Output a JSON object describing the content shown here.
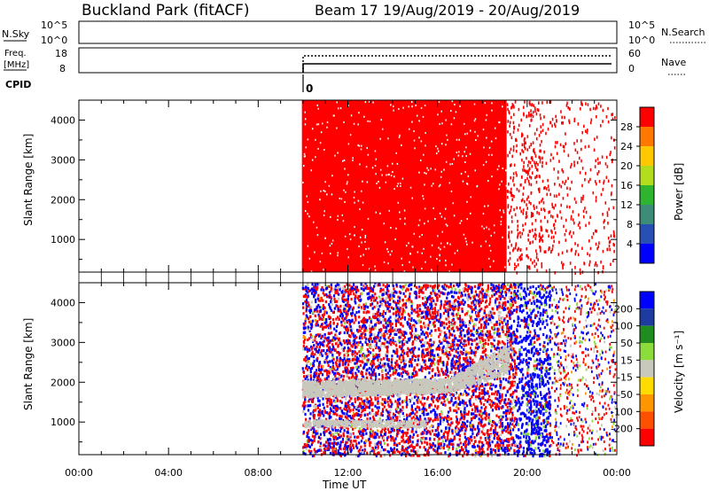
{
  "header": {
    "station": "Buckland Park (fitACF)",
    "beam": "Beam 17",
    "date_range": "19/Aug/2019 - 20/Aug/2019"
  },
  "panels": {
    "nsky": {
      "label": "N.Sky",
      "ticks": [
        "10^5",
        "10^0"
      ],
      "right_ticks": [
        "10^5",
        "10^0"
      ],
      "right_label": "N.Search"
    },
    "freq": {
      "label_line1": "Freq.",
      "label_line2": "[MHz]",
      "ticks": [
        "18",
        "8"
      ],
      "right_ticks": [
        "60",
        "0"
      ],
      "right_label": "Nave"
    },
    "cpid": {
      "label": "CPID",
      "value": "0"
    }
  },
  "chart_data": [
    {
      "type": "heatmap",
      "name": "power",
      "ylabel": "Slant Range [km]",
      "xlabel": "",
      "x_ticks": [
        "00:00",
        "04:00",
        "08:00",
        "12:00",
        "16:00",
        "20:00",
        "00:00"
      ],
      "y_ticks": [
        1000,
        2000,
        3000,
        4000
      ],
      "ylim": [
        180,
        4500
      ],
      "colorbar": {
        "label": "Power [dB]",
        "ticks": [
          "4",
          "8",
          "12",
          "16",
          "20",
          "24",
          "28"
        ],
        "colors": [
          "#0000ff",
          "#2850b4",
          "#3c8c78",
          "#2fb42f",
          "#b4dc1e",
          "#ffc800",
          "#ff7800",
          "#ff0000"
        ]
      },
      "regions": [
        {
          "t_start": "09:57",
          "t_end": "19:05",
          "density": 0.97,
          "dominant": "#ff0000"
        },
        {
          "t_start": "19:05",
          "t_end": "20:40",
          "density": 0.75,
          "dominant": "#ff0000"
        },
        {
          "t_start": "20:40",
          "t_end": "23:55",
          "density": 0.35,
          "dominant": "#ff0000"
        }
      ]
    },
    {
      "type": "heatmap",
      "name": "velocity",
      "ylabel": "Slant Range [km]",
      "xlabel": "Time UT",
      "x_ticks": [
        "00:00",
        "04:00",
        "08:00",
        "12:00",
        "16:00",
        "20:00",
        "00:00"
      ],
      "y_ticks": [
        1000,
        2000,
        3000,
        4000
      ],
      "ylim": [
        180,
        4500
      ],
      "colorbar": {
        "label": "Velocity [m s⁻¹]",
        "ticks": [
          "200",
          "100",
          "50",
          "15",
          "-15",
          "-50",
          "-100",
          "-200"
        ],
        "colors": [
          "#0000ff",
          "#1e3ca0",
          "#208c20",
          "#8cdc3c",
          "#c8c8bc",
          "#ffdc00",
          "#ff9600",
          "#ff5000",
          "#ff0000"
        ]
      },
      "regions": [
        {
          "t_start": "09:57",
          "t_end": "19:30",
          "mix": "red/blue scatter with grey ground-scatter band"
        },
        {
          "t_start": "19:30",
          "t_end": "21:00",
          "dominant": "#0000ff"
        },
        {
          "t_start": "21:00",
          "t_end": "23:55",
          "mix": "sparse scatter"
        }
      ]
    }
  ]
}
